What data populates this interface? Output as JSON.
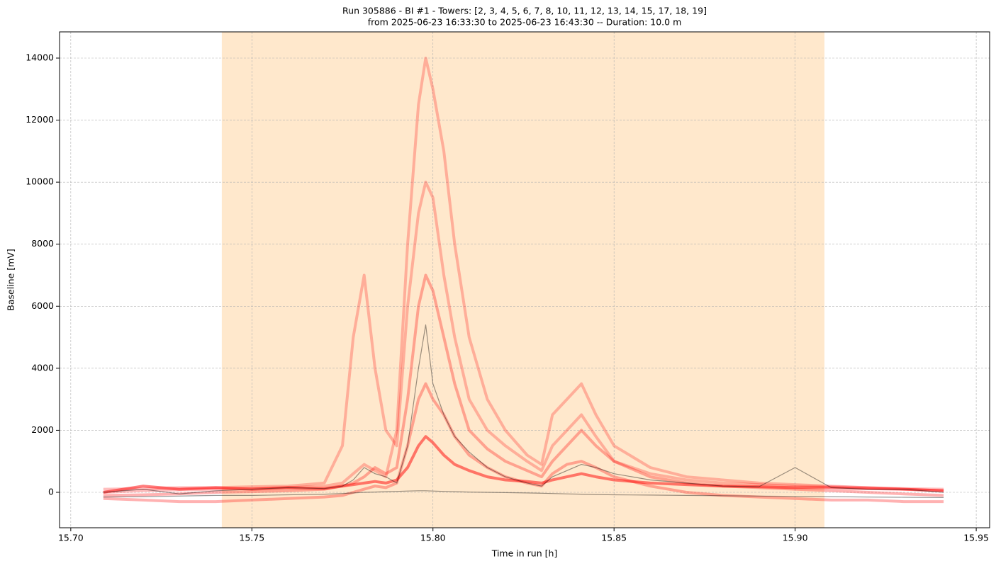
{
  "chart_data": {
    "type": "line",
    "title": "Run 305886  -  BI #1  -  Towers: [2, 3, 4, 5, 6, 7, 8, 10, 11, 12, 13, 14, 15, 17, 18, 19]",
    "subtitle": "from  2025-06-23 16:33:30  to  2025-06-23 16:43:30 -- Duration: 10.0 m",
    "x_label": "Time in run [h]",
    "y_label": "Baseline [mV]",
    "xlim": [
      15.6969,
      15.9537
    ],
    "ylim": [
      -1142,
      14845
    ],
    "xticks": [
      {
        "value": 15.7,
        "label": "15.70"
      },
      15.75,
      {
        "value": 15.8,
        "label": "15.80"
      },
      15.85,
      {
        "value": 15.9,
        "label": "15.90"
      },
      15.95
    ],
    "yticks": [
      0,
      2000,
      4000,
      6000,
      8000,
      10000,
      12000,
      14000
    ],
    "grid": true,
    "shaded_span": {
      "x": [
        15.7417,
        15.9081
      ],
      "color": "#ffe8cc"
    },
    "x": [
      15.709,
      15.72,
      15.73,
      15.74,
      15.75,
      15.76,
      15.77,
      15.775,
      15.778,
      15.781,
      15.784,
      15.787,
      15.79,
      15.793,
      15.796,
      15.798,
      15.8,
      15.803,
      15.806,
      15.81,
      15.815,
      15.82,
      15.826,
      15.83,
      15.833,
      15.837,
      15.841,
      15.845,
      15.85,
      15.86,
      15.87,
      15.88,
      15.89,
      15.9,
      15.91,
      15.92,
      15.93,
      15.941
    ],
    "series": [
      {
        "color": "#ff0000",
        "alpha": 0.25,
        "values": [
          0,
          50,
          80,
          100,
          120,
          150,
          200,
          300,
          600,
          900,
          700,
          500,
          2000,
          8000,
          12500,
          14000,
          13000,
          11000,
          8000,
          5000,
          3000,
          2000,
          1200,
          900,
          2500,
          3000,
          3500,
          2500,
          1500,
          800,
          500,
          400,
          300,
          250,
          200,
          150,
          100,
          50
        ]
      },
      {
        "color": "#ff0000",
        "alpha": 0.25,
        "values": [
          100,
          120,
          150,
          150,
          180,
          200,
          300,
          1500,
          5000,
          7000,
          4000,
          2000,
          1500,
          6000,
          9000,
          10000,
          9500,
          7000,
          5000,
          3000,
          2000,
          1500,
          1000,
          700,
          1500,
          2000,
          2500,
          1800,
          1000,
          600,
          400,
          300,
          250,
          200,
          180,
          150,
          120,
          100
        ]
      },
      {
        "color": "#ff0000",
        "alpha": 0.3,
        "values": [
          -100,
          -80,
          -50,
          0,
          20,
          50,
          100,
          200,
          300,
          500,
          800,
          600,
          800,
          3000,
          6000,
          7000,
          6500,
          5000,
          3500,
          2000,
          1400,
          1000,
          700,
          500,
          1000,
          1500,
          2000,
          1500,
          1000,
          500,
          300,
          200,
          150,
          100,
          50,
          0,
          -50,
          -100
        ]
      },
      {
        "color": "#ff0000",
        "alpha": 0.3,
        "values": [
          -200,
          -250,
          -300,
          -300,
          -250,
          -200,
          -150,
          -100,
          0,
          100,
          200,
          150,
          300,
          1500,
          3000,
          3500,
          3000,
          2500,
          1800,
          1200,
          800,
          500,
          300,
          200,
          600,
          900,
          1000,
          800,
          500,
          200,
          0,
          -100,
          -150,
          -200,
          -250,
          -250,
          -300,
          -300
        ]
      },
      {
        "color": "#ff0000",
        "alpha": 0.5,
        "values": [
          0,
          200,
          100,
          150,
          100,
          150,
          120,
          200,
          250,
          300,
          350,
          300,
          400,
          800,
          1500,
          1800,
          1600,
          1200,
          900,
          700,
          500,
          400,
          350,
          300,
          400,
          500,
          600,
          500,
          400,
          300,
          250,
          200,
          180,
          150,
          150,
          120,
          100,
          50
        ]
      },
      {
        "color": "#000000",
        "alpha": 0.4,
        "values": [
          0,
          100,
          -50,
          50,
          100,
          150,
          120,
          200,
          400,
          800,
          600,
          500,
          300,
          1500,
          4000,
          5400,
          3500,
          2500,
          1800,
          1300,
          800,
          500,
          300,
          200,
          500,
          700,
          900,
          800,
          600,
          400,
          300,
          200,
          180,
          800,
          150,
          100,
          100,
          0
        ]
      },
      {
        "color": "#000000",
        "alpha": 0.4,
        "values": [
          -150,
          -140,
          -120,
          -100,
          -100,
          -80,
          -60,
          -40,
          -20,
          0,
          10,
          20,
          30,
          40,
          50,
          50,
          40,
          30,
          20,
          10,
          0,
          -10,
          -20,
          -30,
          -40,
          -50,
          -60,
          -70,
          -80,
          -90,
          -100,
          -110,
          -120,
          -130,
          -140,
          -150,
          -160,
          -170
        ]
      }
    ]
  }
}
